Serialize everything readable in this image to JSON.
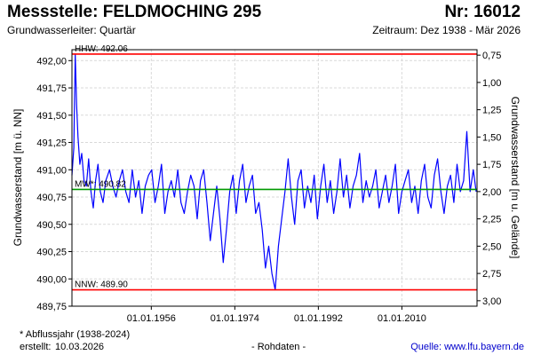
{
  "header": {
    "station": "Messstelle: FELDMOCHING 295",
    "number": "Nr: 16012",
    "aquifer": "Grundwasserleiter: Quartär",
    "period": "Zeitraum: Dez 1938 - Mär 2026"
  },
  "footer": {
    "note": "* Abflussjahr (1938-2024)",
    "created_label": "erstellt:",
    "created_date": "10.03.2026",
    "raw_data": "- Rohdaten -",
    "source": "Quelle: www.lfu.bayern.de"
  },
  "colors": {
    "series": "#0000ff",
    "extreme_lines": "#ff0000",
    "mean_line": "#009900",
    "grid": "#d9d9d9"
  },
  "chart_data": {
    "type": "line",
    "ylabel": "Grundwasserstand [m ü. NN]",
    "y2label": "Grundwasserstand [m u. Gelände]",
    "ylim": [
      489.75,
      492.1
    ],
    "y_ticks": [
      "489,75",
      "490,00",
      "490,25",
      "490,50",
      "490,75",
      "491,00",
      "491,25",
      "491,50",
      "491,75",
      "492,00"
    ],
    "y_tick_values": [
      489.75,
      490.0,
      490.25,
      490.5,
      490.75,
      491.0,
      491.25,
      491.5,
      491.75,
      492.0
    ],
    "y2_ticks": [
      "0,75",
      "1,00",
      "1,25",
      "1,50",
      "1,75",
      "2,00",
      "2,25",
      "2,50",
      "2,75",
      "3,00"
    ],
    "y2_tick_values": [
      0.75,
      1.0,
      1.25,
      1.5,
      1.75,
      2.0,
      2.25,
      2.5,
      2.75,
      3.0
    ],
    "ground_level": 492.8,
    "xlim": [
      1938.9,
      2026.2
    ],
    "x_ticks": [
      "01.01.1956",
      "01.01.1974",
      "01.01.1992",
      "01.01.2010"
    ],
    "x_tick_values": [
      1956.0,
      1974.0,
      1992.0,
      2010.0
    ],
    "grid": true,
    "reference_lines": [
      {
        "label": "HHW: 492.06",
        "value": 492.06,
        "color": "#ff0000"
      },
      {
        "label": "MW*: 490.82",
        "value": 490.82,
        "color": "#009900"
      },
      {
        "label": "NNW: 489.90",
        "value": 489.9,
        "color": "#ff0000"
      }
    ],
    "series": [
      {
        "x": [
          1938.9,
          1939.3,
          1939.6,
          1939.9,
          1940.2,
          1940.6,
          1941.0,
          1941.5,
          1942.0,
          1942.5,
          1943.0,
          1943.5,
          1944.0,
          1944.5,
          1945.0,
          1945.6,
          1946.2,
          1947.0,
          1947.7,
          1948.4,
          1949.1,
          1949.8,
          1950.5,
          1951.2,
          1951.9,
          1952.6,
          1953.3,
          1954.0,
          1954.7,
          1955.4,
          1956.1,
          1956.8,
          1957.5,
          1958.2,
          1958.9,
          1959.6,
          1960.3,
          1961.0,
          1961.7,
          1962.4,
          1963.1,
          1963.8,
          1964.5,
          1965.2,
          1965.9,
          1966.6,
          1967.3,
          1968.0,
          1968.7,
          1969.4,
          1970.1,
          1970.8,
          1971.5,
          1972.2,
          1972.9,
          1973.6,
          1974.3,
          1975.0,
          1975.7,
          1976.4,
          1977.1,
          1977.8,
          1978.5,
          1979.2,
          1979.9,
          1980.6,
          1981.3,
          1982.0,
          1982.7,
          1983.4,
          1984.1,
          1984.8,
          1985.5,
          1986.2,
          1986.9,
          1987.6,
          1988.3,
          1989.0,
          1989.7,
          1990.4,
          1991.1,
          1991.8,
          1992.5,
          1993.2,
          1993.9,
          1994.6,
          1995.3,
          1996.0,
          1996.7,
          1997.4,
          1998.1,
          1998.8,
          1999.5,
          2000.2,
          2000.9,
          2001.6,
          2002.3,
          2003.0,
          2003.7,
          2004.4,
          2005.1,
          2005.8,
          2006.5,
          2007.2,
          2007.9,
          2008.6,
          2009.3,
          2010.0,
          2010.7,
          2011.4,
          2012.1,
          2012.8,
          2013.5,
          2014.2,
          2014.9,
          2015.6,
          2016.3,
          2017.0,
          2017.7,
          2018.4,
          2019.1,
          2019.8,
          2020.5,
          2021.2,
          2021.9,
          2022.6,
          2023.3,
          2024.0,
          2024.7,
          2025.4,
          2026.0
        ],
        "y": [
          490.95,
          491.2,
          492.06,
          491.6,
          491.3,
          491.05,
          491.15,
          490.9,
          490.85,
          491.1,
          490.8,
          490.65,
          490.9,
          491.05,
          490.8,
          490.7,
          490.9,
          491.0,
          490.85,
          490.75,
          490.9,
          491.0,
          490.8,
          490.7,
          491.0,
          490.75,
          490.9,
          490.6,
          490.85,
          490.95,
          491.0,
          490.7,
          490.85,
          491.05,
          490.6,
          490.8,
          490.9,
          490.75,
          491.0,
          490.7,
          490.6,
          490.8,
          490.95,
          490.85,
          490.55,
          490.9,
          491.0,
          490.7,
          490.35,
          490.6,
          490.85,
          490.55,
          490.15,
          490.45,
          490.8,
          490.95,
          490.6,
          490.9,
          491.05,
          490.7,
          490.85,
          490.95,
          490.6,
          490.7,
          490.45,
          490.1,
          490.3,
          490.05,
          489.9,
          490.3,
          490.55,
          490.8,
          491.1,
          490.75,
          490.5,
          490.9,
          491.0,
          490.65,
          490.85,
          490.7,
          490.95,
          490.55,
          490.85,
          491.05,
          490.7,
          490.9,
          490.6,
          490.8,
          491.1,
          490.75,
          490.95,
          490.65,
          490.85,
          490.95,
          491.15,
          490.7,
          490.9,
          490.75,
          490.85,
          491.0,
          490.65,
          490.8,
          490.95,
          490.7,
          490.85,
          491.05,
          490.6,
          490.8,
          490.9,
          491.0,
          490.7,
          490.85,
          490.6,
          490.9,
          491.05,
          490.75,
          490.65,
          490.95,
          491.1,
          490.8,
          490.6,
          490.85,
          490.95,
          490.7,
          491.05,
          490.8,
          490.9,
          491.35,
          490.8,
          491.0,
          490.8
        ]
      }
    ]
  }
}
